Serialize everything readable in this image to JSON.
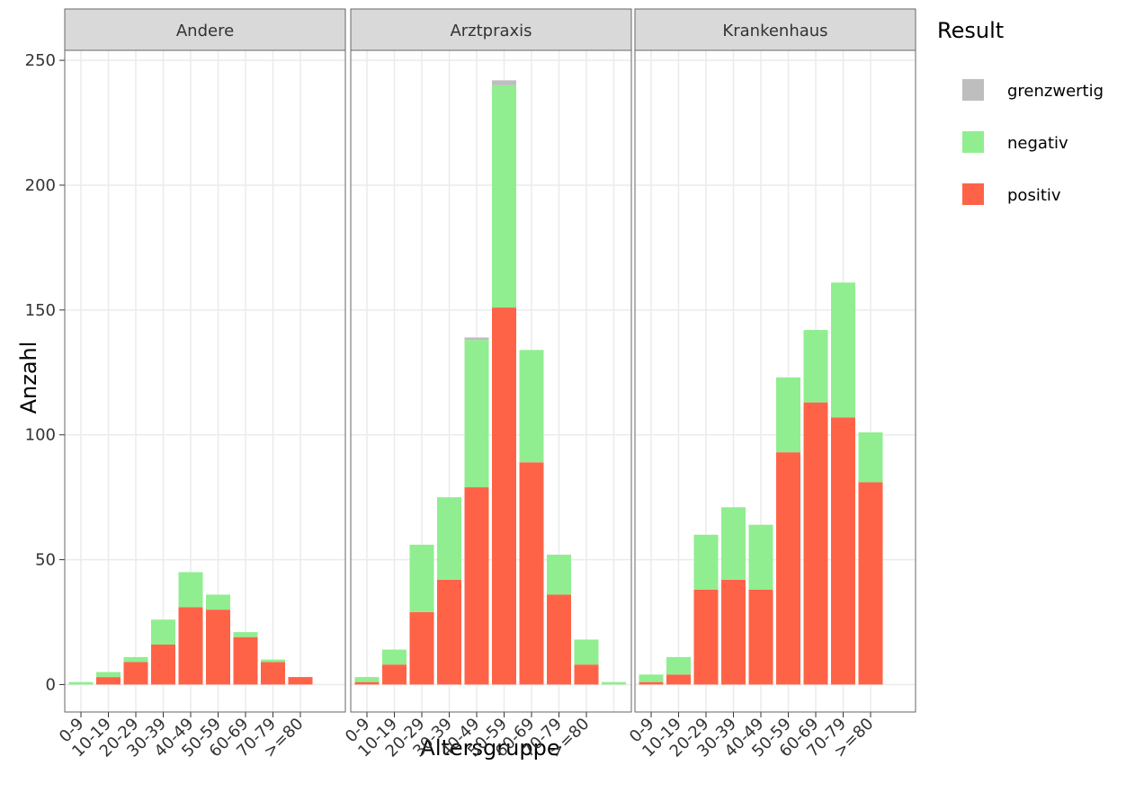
{
  "chart_data": {
    "type": "bar",
    "stacked": true,
    "ylabel": "Anzahl",
    "xlabel": "Altersgruppe",
    "legend_title": "Result",
    "ylim": [
      -11,
      254
    ],
    "yticks": [
      0,
      50,
      100,
      150,
      200,
      250
    ],
    "grid": true,
    "facets": [
      {
        "title": "Andere",
        "categories": [
          "0-9",
          "10-19",
          "20-29",
          "30-39",
          "40-49",
          "50-59",
          "60-69",
          "70-79",
          ">=80"
        ],
        "series": [
          {
            "name": "grenzwertig",
            "color": "#bebebe",
            "values": [
              0,
              0,
              0,
              0,
              0,
              0,
              0,
              0,
              0
            ]
          },
          {
            "name": "negativ",
            "color": "#90ee90",
            "values": [
              1,
              2,
              2,
              10,
              14,
              6,
              2,
              1,
              0
            ]
          },
          {
            "name": "positiv",
            "color": "#ff6347",
            "values": [
              0,
              3,
              9,
              16,
              31,
              30,
              19,
              9,
              3
            ]
          }
        ]
      },
      {
        "title": "Arztpraxis",
        "categories": [
          "0-9",
          "10-19",
          "20-29",
          "30-39",
          "40-49",
          "50-59",
          "60-69",
          "70-79",
          ">=80",
          null
        ],
        "series": [
          {
            "name": "grenzwertig",
            "color": "#bebebe",
            "values": [
              0,
              0,
              0,
              0,
              1,
              2,
              0,
              0,
              0,
              0
            ]
          },
          {
            "name": "negativ",
            "color": "#90ee90",
            "values": [
              2,
              6,
              27,
              33,
              59,
              89,
              45,
              16,
              10,
              1
            ]
          },
          {
            "name": "positiv",
            "color": "#ff6347",
            "values": [
              1,
              8,
              29,
              42,
              79,
              151,
              89,
              36,
              8,
              0
            ]
          }
        ]
      },
      {
        "title": "Krankenhaus",
        "categories": [
          "0-9",
          "10-19",
          "20-29",
          "30-39",
          "40-49",
          "50-59",
          "60-69",
          "70-79",
          ">=80"
        ],
        "series": [
          {
            "name": "grenzwertig",
            "color": "#bebebe",
            "values": [
              0,
              0,
              0,
              0,
              0,
              0,
              0,
              0,
              0
            ]
          },
          {
            "name": "negativ",
            "color": "#90ee90",
            "values": [
              3,
              7,
              22,
              29,
              26,
              30,
              29,
              54,
              20
            ]
          },
          {
            "name": "positiv",
            "color": "#ff6347",
            "values": [
              1,
              4,
              38,
              42,
              38,
              93,
              113,
              107,
              81
            ]
          }
        ]
      }
    ]
  }
}
